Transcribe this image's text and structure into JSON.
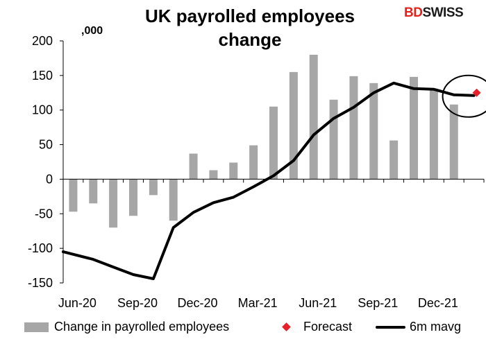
{
  "chart_data": {
    "type": "bar",
    "title_line1": "UK payrolled employees",
    "title_line2": "change",
    "units_label": ",000",
    "ylim": [
      -150,
      200
    ],
    "yticks": [
      "200",
      "150",
      "100",
      "50",
      "0",
      "-50",
      "-100",
      "-150"
    ],
    "ytick_values": [
      200,
      150,
      100,
      50,
      0,
      -50,
      -100,
      -150
    ],
    "x_labels": [
      "Jun-20",
      "Sep-20",
      "Dec-20",
      "Mar-21",
      "Jun-21",
      "Sep-21",
      "Dec-21"
    ],
    "categories": [
      "Jun-20",
      "Jul-20",
      "Aug-20",
      "Sep-20",
      "Oct-20",
      "Nov-20",
      "Dec-20",
      "Jan-21",
      "Feb-21",
      "Mar-21",
      "Apr-21",
      "May-21",
      "Jun-21",
      "Jul-21",
      "Aug-21",
      "Sep-21",
      "Oct-21",
      "Nov-21",
      "Dec-21",
      "Jan-22",
      "Feb-22"
    ],
    "series": [
      {
        "name": "Change in payrolled employees",
        "type": "bar",
        "color": "#a6a6a6",
        "values": [
          -47,
          -35,
          -70,
          -53,
          -23,
          -60,
          37,
          13,
          24,
          49,
          105,
          155,
          180,
          115,
          149,
          139,
          56,
          148,
          131,
          108,
          null
        ]
      },
      {
        "name": "Forecast",
        "type": "marker",
        "color": "#e8202a",
        "values": [
          null,
          null,
          null,
          null,
          null,
          null,
          null,
          null,
          null,
          null,
          null,
          null,
          null,
          null,
          null,
          null,
          null,
          null,
          null,
          null,
          125
        ]
      },
      {
        "name": "6m mavg",
        "type": "line",
        "color": "#000000",
        "values": [
          -105,
          -116,
          -127,
          -138,
          -144,
          -70,
          -48,
          -34,
          -26,
          -11,
          5,
          27,
          64,
          88,
          104,
          125,
          139,
          131,
          130,
          122,
          121
        ]
      }
    ],
    "annotation": "circle around forecast",
    "legend_position": "bottom",
    "grid": false
  },
  "logo": {
    "part1": "BD",
    "part2": "SWISS"
  }
}
